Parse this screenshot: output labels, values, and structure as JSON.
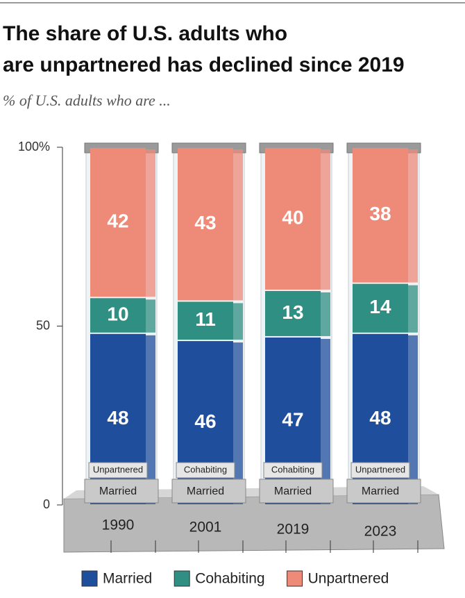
{
  "chart_data": {
    "type": "bar",
    "stacked": true,
    "title": "The share of U.S. adults who are unpartnered has declined since 2019",
    "subtitle": "% of U.S. adults who are ...",
    "categories": [
      "1990",
      "2001",
      "2019",
      "2023"
    ],
    "series": [
      {
        "name": "Married",
        "color": "#1f4e9c",
        "values": [
          48,
          46,
          47,
          48
        ]
      },
      {
        "name": "Cohabiting",
        "color": "#2f8f83",
        "values": [
          10,
          11,
          13,
          14
        ]
      },
      {
        "name": "Unpartnered",
        "color": "#ee8a78",
        "values": [
          42,
          43,
          40,
          38
        ]
      }
    ],
    "pedestal_labels": [
      [
        "Unpartnered",
        "Married"
      ],
      [
        "Cohabiting",
        "Married"
      ],
      [
        "Cohabiting",
        "Married"
      ],
      [
        "Unpartnered",
        "Married"
      ]
    ],
    "ylim": [
      0,
      100
    ],
    "yticks": [
      {
        "value": 100,
        "label": "100%"
      },
      50,
      0
    ]
  }
}
